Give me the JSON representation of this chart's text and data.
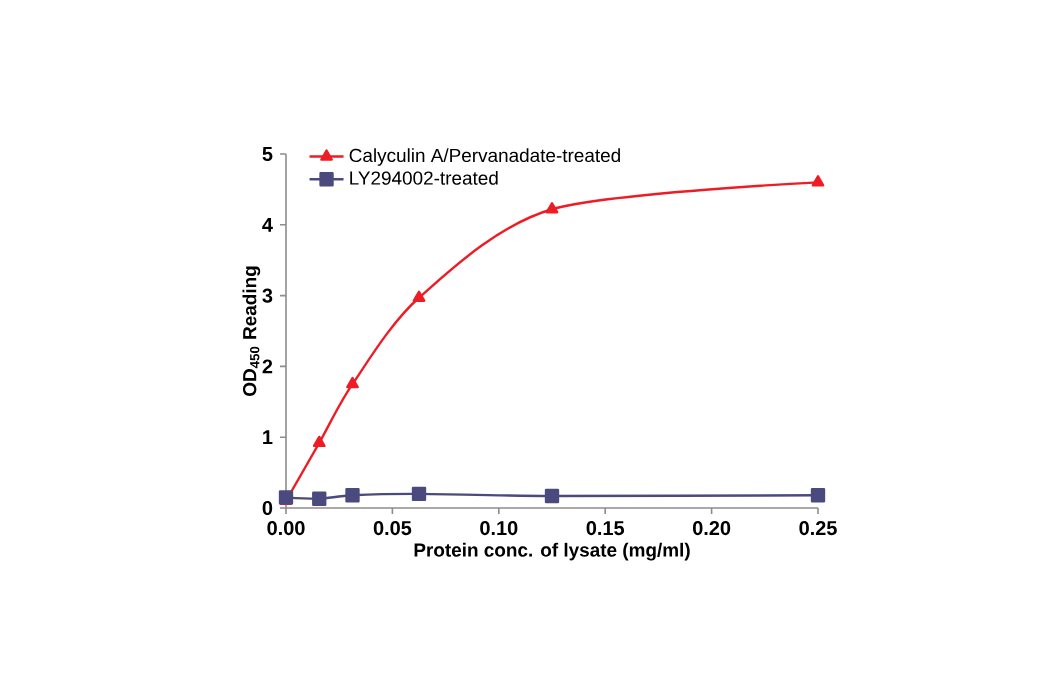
{
  "chart_data": {
    "type": "line",
    "xlabel": "Protein conc. of lysate (mg/ml)",
    "ylabel": "OD$_{450}$ Reading",
    "x": [
      0,
      0.015625,
      0.03125,
      0.0625,
      0.125,
      0.25
    ],
    "series": [
      {
        "name": "Calyculin A/Pervanadate-treated",
        "color": "#ee1c25",
        "marker": "triangle",
        "values": [
          0.1,
          0.92,
          1.75,
          2.97,
          4.22,
          4.6
        ]
      },
      {
        "name": "LY294002-treated",
        "color": "#4b4a7f",
        "marker": "square",
        "values": [
          0.15,
          0.13,
          0.18,
          0.2,
          0.17,
          0.18
        ]
      }
    ],
    "xlim": [
      0,
      0.25
    ],
    "ylim": [
      0,
      5
    ],
    "xticks": [
      {
        "value": 0,
        "label": "0.00"
      },
      {
        "value": 0.05,
        "label": "0.05"
      },
      {
        "value": 0.1,
        "label": "0.10"
      },
      {
        "value": 0.15,
        "label": "0.15"
      },
      {
        "value": 0.2,
        "label": "0.20"
      },
      {
        "value": 0.25,
        "label": "0.25"
      }
    ],
    "yticks": [
      0,
      1,
      2,
      3,
      4,
      5
    ],
    "legend": "top left",
    "grid": false,
    "line_style": "solid"
  }
}
